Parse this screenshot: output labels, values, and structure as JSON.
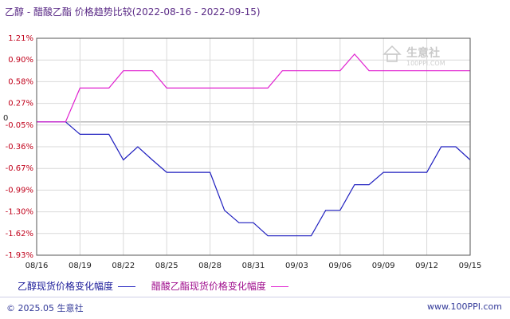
{
  "title": "乙醇 - 醋酸乙酯 价格趋势比较(2022-08-16 - 2022-09-15)",
  "watermark": {
    "name": "生意社",
    "url": "100PPI.COM"
  },
  "footer": {
    "copyright": "© 2025.05 生意社",
    "url": "www.100PPI.com"
  },
  "colors": {
    "series1": "#1f1fbf",
    "series2": "#e020d0",
    "zero_line": "#999999",
    "grid": "#d9d9d9"
  },
  "chart_data": {
    "type": "line",
    "ylim": [
      -1.93,
      1.21
    ],
    "yticks": [
      "1.21%",
      "0.90%",
      "0.58%",
      "0.27%",
      "-0.05%",
      "-0.36%",
      "-0.67%",
      "-0.99%",
      "-1.30%",
      "-1.62%",
      "-1.93%"
    ],
    "y_zero_label": "0",
    "xticks": [
      "08/16",
      "08/19",
      "08/22",
      "08/25",
      "08/28",
      "08/31",
      "09/03",
      "09/06",
      "09/09",
      "09/12",
      "09/15"
    ],
    "x": [
      "08/16",
      "08/17",
      "08/18",
      "08/19",
      "08/20",
      "08/21",
      "08/22",
      "08/23",
      "08/24",
      "08/25",
      "08/26",
      "08/27",
      "08/28",
      "08/29",
      "08/30",
      "08/31",
      "09/01",
      "09/02",
      "09/03",
      "09/04",
      "09/05",
      "09/06",
      "09/07",
      "09/08",
      "09/09",
      "09/10",
      "09/11",
      "09/12",
      "09/13",
      "09/14",
      "09/15"
    ],
    "series": [
      {
        "name": "乙醇现货价格变化幅度",
        "values": [
          0,
          0,
          0,
          -0.18,
          -0.18,
          -0.18,
          -0.55,
          -0.36,
          -0.55,
          -0.73,
          -0.73,
          -0.73,
          -0.73,
          -1.28,
          -1.46,
          -1.46,
          -1.65,
          -1.65,
          -1.65,
          -1.65,
          -1.28,
          -1.28,
          -0.91,
          -0.91,
          -0.73,
          -0.73,
          -0.73,
          -0.73,
          -0.36,
          -0.36,
          -0.55
        ]
      },
      {
        "name": "醋酸乙酯现货价格变化幅度",
        "values": [
          0,
          0,
          0,
          0.49,
          0.49,
          0.49,
          0.74,
          0.74,
          0.74,
          0.49,
          0.49,
          0.49,
          0.49,
          0.49,
          0.49,
          0.49,
          0.49,
          0.74,
          0.74,
          0.74,
          0.74,
          0.74,
          0.98,
          0.74,
          0.74,
          0.74,
          0.74,
          0.74,
          0.74,
          0.74,
          0.74
        ]
      }
    ]
  }
}
